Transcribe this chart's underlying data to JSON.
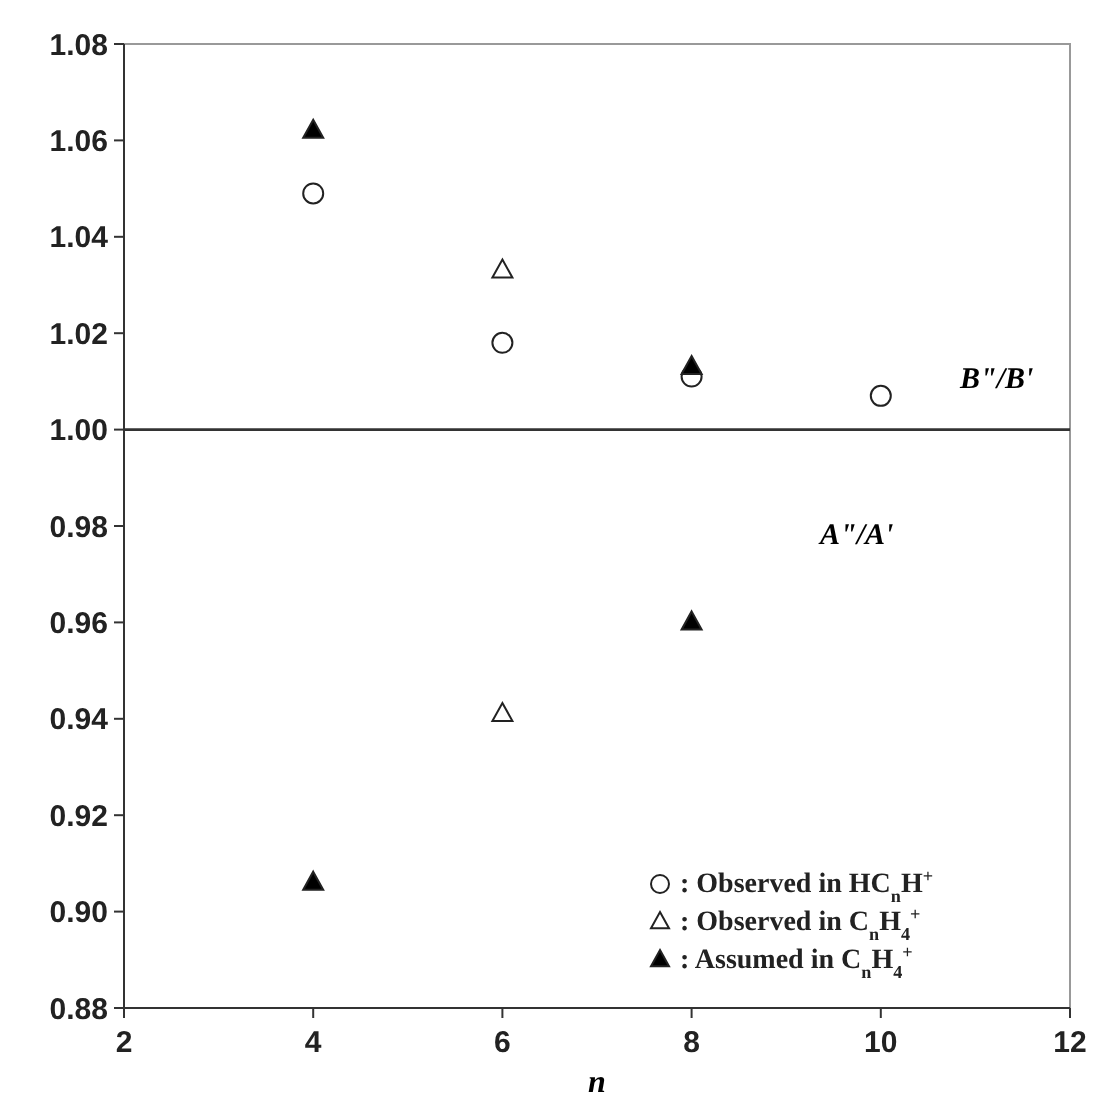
{
  "chart_data": {
    "type": "scatter",
    "xlabel": "n",
    "series": [
      {
        "name": ": Observed in HC$_{n}$H$^{+}$",
        "marker": "circle",
        "color": "#ffffff",
        "x": [
          4,
          6,
          8,
          10
        ],
        "values": [
          1.049,
          1.018,
          1.011,
          1.007
        ]
      },
      {
        "name": ": Observed in C$_{n}$H$_{4}$$^{+}$",
        "marker": "triangle",
        "color": "#ffffff",
        "x": [
          6,
          6
        ],
        "values": [
          1.033,
          0.941
        ]
      },
      {
        "name": ": Assumed in C$_{n}$H$_{4}$$^{+}$",
        "marker": "triangle",
        "color": "#000000",
        "x": [
          4,
          8,
          4,
          8
        ],
        "values": [
          1.062,
          1.013,
          0.906,
          0.96
        ]
      }
    ],
    "xlim": [
      2,
      12
    ],
    "xticks": [
      2,
      4,
      6,
      8,
      10,
      12
    ],
    "ylim": [
      0.88,
      1.08
    ],
    "yticks": [
      {
        "value": 0.88,
        "label": "0.88"
      },
      {
        "value": 0.9,
        "label": "0.90"
      },
      {
        "value": 0.92,
        "label": "0.92"
      },
      {
        "value": 0.94,
        "label": "0.94"
      },
      {
        "value": 0.96,
        "label": "0.96"
      },
      {
        "value": 0.98,
        "label": "0.98"
      },
      {
        "value": 1.0,
        "label": "1.00"
      },
      {
        "value": 1.02,
        "label": "1.02"
      },
      {
        "value": 1.04,
        "label": "1.04"
      },
      {
        "value": 1.06,
        "label": "1.06"
      },
      {
        "value": 1.08,
        "label": "1.08"
      }
    ],
    "ref_lines": [
      {
        "axis": "y",
        "value": 1.0,
        "color": "#333333"
      }
    ],
    "annotations": [
      "B\"/B'",
      "A\"/A'"
    ],
    "legend": "bottom right",
    "grid": false
  }
}
